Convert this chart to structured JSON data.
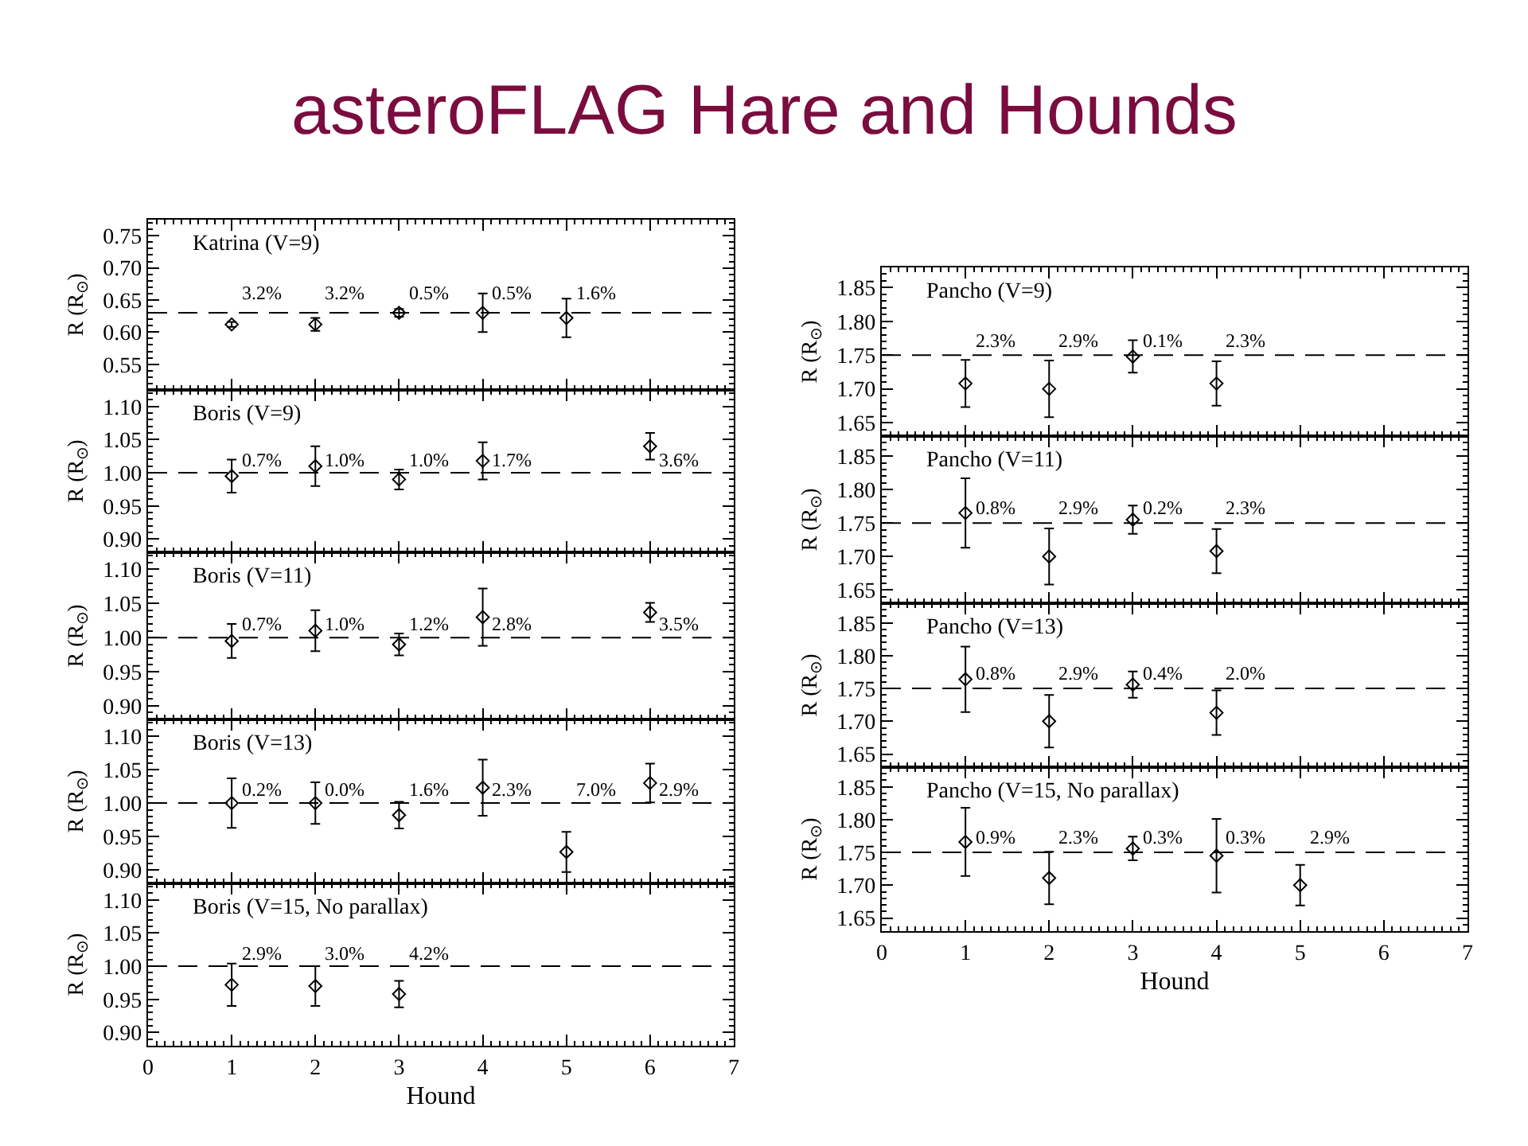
{
  "chart_data": [
    {
      "type": "scatter",
      "title": "asteroFLAG Hare and Hounds",
      "subtitle": "Katrina (V=9)",
      "ylabel": "R (R$_{⊙}$)",
      "x": [
        1,
        2,
        3,
        4,
        5
      ],
      "series": [
        {
          "color": "#000000",
          "values": [
            0.612,
            0.612,
            0.63,
            0.63,
            0.622
          ],
          "errors": [
            0.004,
            0.01,
            0.006,
            0.03,
            0.03
          ]
        }
      ],
      "xlim": [
        0,
        7
      ],
      "xticks": [
        0,
        1,
        2,
        3,
        4,
        5,
        6,
        7
      ],
      "ylim": [
        0.51,
        0.775
      ],
      "yticks": [
        0.55,
        {
          "value": 0.6,
          "label": "0.60"
        },
        0.65,
        {
          "value": 0.7,
          "label": "0.70"
        },
        0.75
      ],
      "ref_lines": [
        {
          "axis": "y",
          "value": 0.63,
          "line_style": "dashed"
        }
      ],
      "annotations": [
        "3.2%",
        "3.2%",
        "0.5%",
        "0.5%",
        "1.6%"
      ],
      "marker": "diamond",
      "tick_labels": "y"
    },
    {
      "type": "scatter",
      "subtitle": "Boris (V=9)",
      "ylabel": "R (R$_{⊙}$)",
      "x": [
        1,
        2,
        3,
        4,
        6
      ],
      "series": [
        {
          "color": "#000000",
          "values": [
            0.995,
            1.01,
            0.99,
            1.018,
            1.04
          ],
          "errors": [
            0.025,
            0.03,
            0.015,
            0.028,
            0.02
          ]
        }
      ],
      "xlim": [
        0,
        7
      ],
      "xticks": [
        0,
        1,
        2,
        3,
        4,
        5,
        6,
        7
      ],
      "ylim": [
        0.88,
        1.125
      ],
      "yticks": [
        {
          "value": 0.9,
          "label": "0.90"
        },
        0.95,
        {
          "value": 1.0,
          "label": "1.00"
        },
        1.05,
        {
          "value": 1.1,
          "label": "1.10"
        }
      ],
      "ref_lines": [
        {
          "axis": "y",
          "value": 1.0,
          "line_style": "dashed"
        }
      ],
      "annotations": [
        "0.7%",
        "1.0%",
        "1.0%",
        "1.7%",
        "3.6%"
      ],
      "marker": "diamond",
      "tick_labels": "y"
    },
    {
      "type": "scatter",
      "subtitle": "Boris (V=11)",
      "ylabel": "R (R$_{⊙}$)",
      "x": [
        1,
        2,
        3,
        4,
        6
      ],
      "series": [
        {
          "color": "#000000",
          "values": [
            0.995,
            1.01,
            0.99,
            1.03,
            1.037
          ],
          "errors": [
            0.025,
            0.03,
            0.016,
            0.042,
            0.014
          ]
        }
      ],
      "xlim": [
        0,
        7
      ],
      "xticks": [
        0,
        1,
        2,
        3,
        4,
        5,
        6,
        7
      ],
      "ylim": [
        0.88,
        1.125
      ],
      "yticks": [
        {
          "value": 0.9,
          "label": "0.90"
        },
        0.95,
        {
          "value": 1.0,
          "label": "1.00"
        },
        1.05,
        {
          "value": 1.1,
          "label": "1.10"
        }
      ],
      "ref_lines": [
        {
          "axis": "y",
          "value": 1.0,
          "line_style": "dashed"
        }
      ],
      "annotations": [
        "0.7%",
        "1.0%",
        "1.2%",
        "2.8%",
        "3.5%"
      ],
      "marker": "diamond",
      "tick_labels": "y"
    },
    {
      "type": "scatter",
      "subtitle": "Boris (V=13)",
      "ylabel": "R (R$_{⊙}$)",
      "x": [
        1,
        2,
        3,
        4,
        5,
        6
      ],
      "series": [
        {
          "color": "#000000",
          "values": [
            1.0,
            1.0,
            0.982,
            1.023,
            0.927,
            1.03
          ],
          "errors": [
            0.037,
            0.031,
            0.02,
            0.042,
            0.03,
            0.029
          ]
        }
      ],
      "xlim": [
        0,
        7
      ],
      "xticks": [
        0,
        1,
        2,
        3,
        4,
        5,
        6,
        7
      ],
      "ylim": [
        0.88,
        1.125
      ],
      "yticks": [
        {
          "value": 0.9,
          "label": "0.90"
        },
        0.95,
        {
          "value": 1.0,
          "label": "1.00"
        },
        1.05,
        {
          "value": 1.1,
          "label": "1.10"
        }
      ],
      "ref_lines": [
        {
          "axis": "y",
          "value": 1.0,
          "line_style": "dashed"
        }
      ],
      "annotations": [
        "0.2%",
        "0.0%",
        "1.6%",
        "2.3%",
        "7.0%",
        "2.9%"
      ],
      "marker": "diamond",
      "tick_labels": "y"
    },
    {
      "type": "scatter",
      "subtitle": "Boris (V=15, No parallax)",
      "xlabel": "Hound",
      "ylabel": "R (R$_{⊙}$)",
      "x": [
        1,
        2,
        3
      ],
      "series": [
        {
          "color": "#000000",
          "values": [
            0.972,
            0.97,
            0.958
          ],
          "errors": [
            0.032,
            0.03,
            0.02
          ]
        }
      ],
      "xlim": [
        0,
        7
      ],
      "xticks": [
        0,
        1,
        2,
        3,
        4,
        5,
        6,
        7
      ],
      "ylim": [
        0.88,
        1.125
      ],
      "yticks": [
        {
          "value": 0.9,
          "label": "0.90"
        },
        0.95,
        {
          "value": 1.0,
          "label": "1.00"
        },
        1.05,
        {
          "value": 1.1,
          "label": "1.10"
        }
      ],
      "ref_lines": [
        {
          "axis": "y",
          "value": 1.0,
          "line_style": "dashed"
        }
      ],
      "annotations": [
        "2.9%",
        "3.0%",
        "4.2%"
      ],
      "marker": "diamond"
    },
    {
      "type": "scatter",
      "subtitle": "Pancho (V=9)",
      "ylabel": "R (R$_{⊙}$)",
      "x": [
        1,
        2,
        3,
        4
      ],
      "series": [
        {
          "color": "#000000",
          "values": [
            1.708,
            1.7,
            1.748,
            1.708
          ],
          "errors": [
            0.035,
            0.042,
            0.024,
            0.033
          ]
        }
      ],
      "xlim": [
        0,
        7
      ],
      "xticks": [
        0,
        1,
        2,
        3,
        4,
        5,
        6,
        7
      ],
      "ylim": [
        1.63,
        1.88
      ],
      "yticks": [
        1.65,
        {
          "value": 1.7,
          "label": "1.70"
        },
        1.75,
        {
          "value": 1.8,
          "label": "1.80"
        },
        1.85
      ],
      "ref_lines": [
        {
          "axis": "y",
          "value": 1.75,
          "line_style": "dashed"
        }
      ],
      "annotations": [
        "2.3%",
        "2.9%",
        "0.1%",
        "2.3%"
      ],
      "marker": "diamond",
      "tick_labels": "y"
    },
    {
      "type": "scatter",
      "subtitle": "Pancho (V=11)",
      "ylabel": "R (R$_{⊙}$)",
      "x": [
        1,
        2,
        3,
        4
      ],
      "series": [
        {
          "color": "#000000",
          "values": [
            1.765,
            1.7,
            1.755,
            1.708
          ],
          "errors": [
            0.052,
            0.042,
            0.021,
            0.033
          ]
        }
      ],
      "xlim": [
        0,
        7
      ],
      "xticks": [
        0,
        1,
        2,
        3,
        4,
        5,
        6,
        7
      ],
      "ylim": [
        1.63,
        1.88
      ],
      "yticks": [
        1.65,
        {
          "value": 1.7,
          "label": "1.70"
        },
        1.75,
        {
          "value": 1.8,
          "label": "1.80"
        },
        1.85
      ],
      "ref_lines": [
        {
          "axis": "y",
          "value": 1.75,
          "line_style": "dashed"
        }
      ],
      "annotations": [
        "0.8%",
        "2.9%",
        "0.2%",
        "2.3%"
      ],
      "marker": "diamond",
      "tick_labels": "y"
    },
    {
      "type": "scatter",
      "subtitle": "Pancho (V=13)",
      "ylabel": "R (R$_{⊙}$)",
      "x": [
        1,
        2,
        3,
        4
      ],
      "series": [
        {
          "color": "#000000",
          "values": [
            1.764,
            1.7,
            1.756,
            1.713
          ],
          "errors": [
            0.05,
            0.04,
            0.02,
            0.034
          ]
        }
      ],
      "xlim": [
        0,
        7
      ],
      "xticks": [
        0,
        1,
        2,
        3,
        4,
        5,
        6,
        7
      ],
      "ylim": [
        1.63,
        1.88
      ],
      "yticks": [
        1.65,
        {
          "value": 1.7,
          "label": "1.70"
        },
        1.75,
        {
          "value": 1.8,
          "label": "1.80"
        },
        1.85
      ],
      "ref_lines": [
        {
          "axis": "y",
          "value": 1.75,
          "line_style": "dashed"
        }
      ],
      "annotations": [
        "0.8%",
        "2.9%",
        "0.4%",
        "2.0%"
      ],
      "marker": "diamond",
      "tick_labels": "y"
    },
    {
      "type": "scatter",
      "subtitle": "Pancho (V=15, No parallax)",
      "xlabel": "Hound",
      "ylabel": "R (R$_{⊙}$)",
      "x": [
        1,
        2,
        3,
        4,
        5
      ],
      "series": [
        {
          "color": "#000000",
          "values": [
            1.766,
            1.711,
            1.756,
            1.745,
            1.7
          ],
          "errors": [
            0.052,
            0.04,
            0.018,
            0.056,
            0.031
          ]
        }
      ],
      "xlim": [
        0,
        7
      ],
      "xticks": [
        0,
        1,
        2,
        3,
        4,
        5,
        6,
        7
      ],
      "ylim": [
        1.63,
        1.88
      ],
      "yticks": [
        1.65,
        {
          "value": 1.7,
          "label": "1.70"
        },
        1.75,
        {
          "value": 1.8,
          "label": "1.80"
        },
        1.85
      ],
      "ref_lines": [
        {
          "axis": "y",
          "value": 1.75,
          "line_style": "dashed"
        }
      ],
      "annotations": [
        "0.9%",
        "2.3%",
        "0.3%",
        "0.3%",
        "2.9%"
      ],
      "marker": "diamond"
    }
  ]
}
